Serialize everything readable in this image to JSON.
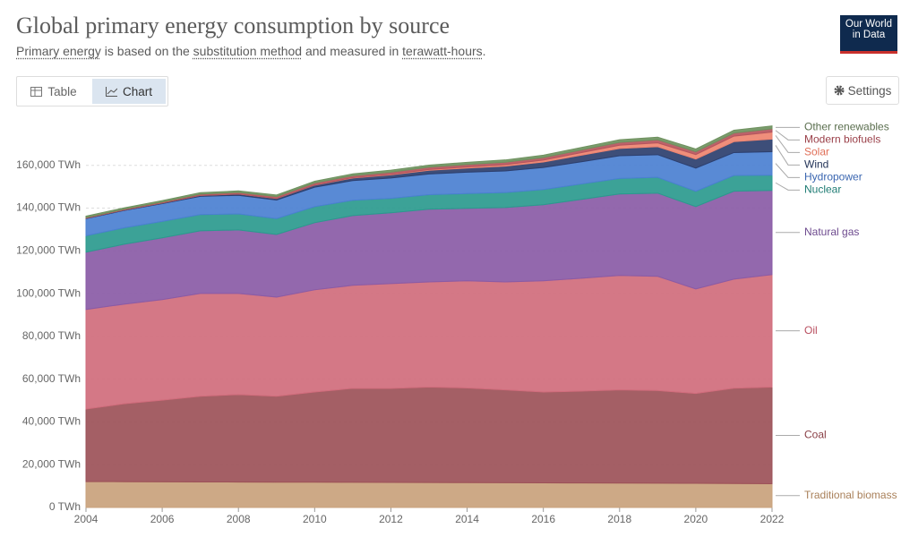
{
  "header": {
    "title": "Global primary energy consumption by source",
    "subtitle": [
      "Primary energy",
      " is based on the ",
      "substitution method",
      " and measured in ",
      "terawatt-hours",
      "."
    ],
    "logo": [
      "Our World",
      "in Data"
    ],
    "tabs": [
      "Table",
      "Chart"
    ],
    "settings": "Settings"
  },
  "chart_data": {
    "type": "stacked-area",
    "x": [
      2004,
      2005,
      2006,
      2007,
      2008,
      2009,
      2010,
      2011,
      2012,
      2013,
      2014,
      2015,
      2016,
      2017,
      2018,
      2019,
      2020,
      2021,
      2022
    ],
    "xlim": [
      2004,
      2022
    ],
    "xticks": [
      2004,
      2006,
      2008,
      2010,
      2012,
      2014,
      2016,
      2018,
      2020,
      2022
    ],
    "ylim": [
      0,
      180000
    ],
    "yticks": [
      {
        "value": 0,
        "label": "0 TWh"
      },
      {
        "value": 20000,
        "label": "20,000 TWh"
      },
      {
        "value": 40000,
        "label": "40,000 TWh"
      },
      {
        "value": 60000,
        "label": "60,000 TWh"
      },
      {
        "value": 80000,
        "label": "80,000 TWh"
      },
      {
        "value": 100000,
        "label": "100,000 TWh"
      },
      {
        "value": 120000,
        "label": "120,000 TWh"
      },
      {
        "value": 140000,
        "label": "140,000 TWh"
      },
      {
        "value": 160000,
        "label": "160,000 TWh"
      }
    ],
    "grid": true,
    "series": [
      {
        "name": "Traditional biomass",
        "color": "#c9a27c",
        "label_color": "#a9805a",
        "values": [
          12100,
          12050,
          12000,
          11950,
          11900,
          11850,
          11800,
          11750,
          11700,
          11650,
          11600,
          11550,
          11500,
          11450,
          11400,
          11350,
          11300,
          11200,
          11100
        ]
      },
      {
        "name": "Coal",
        "color": "#9c5158",
        "label_color": "#8a3f46",
        "values": [
          33900,
          36450,
          38200,
          40050,
          40900,
          40150,
          42200,
          43950,
          44000,
          44650,
          44300,
          43450,
          42500,
          42950,
          43600,
          43350,
          42000,
          44600,
          45200
        ]
      },
      {
        "name": "Oil",
        "color": "#d06d7c",
        "label_color": "#b94f60",
        "values": [
          46600,
          46600,
          47000,
          48100,
          47300,
          46400,
          47800,
          48200,
          49000,
          49200,
          50100,
          50500,
          52000,
          52800,
          53500,
          53400,
          48900,
          51000,
          52600
        ]
      },
      {
        "name": "Natural gas",
        "color": "#8a5ba6",
        "label_color": "#6d4a8e",
        "values": [
          26800,
          28000,
          28900,
          29300,
          29700,
          29300,
          31400,
          32600,
          33100,
          34000,
          33900,
          34800,
          35600,
          36900,
          38100,
          38900,
          38500,
          41100,
          39400
        ]
      },
      {
        "name": "Nuclear",
        "color": "#2b9a8e",
        "label_color": "#1f7c74",
        "values": [
          7700,
          7700,
          7700,
          7600,
          7500,
          7400,
          7500,
          7200,
          6800,
          6800,
          6900,
          7000,
          7100,
          7200,
          7300,
          7400,
          7200,
          7400,
          7100
        ]
      },
      {
        "name": "Hydropower",
        "color": "#4b80d1",
        "label_color": "#3a66b0",
        "values": [
          8000,
          8100,
          8300,
          8500,
          8700,
          8700,
          9100,
          9200,
          9500,
          9700,
          10000,
          10100,
          10300,
          10400,
          10600,
          10600,
          10800,
          10700,
          11000
        ]
      },
      {
        "name": "Wind",
        "color": "#2d3f6e",
        "label_color": "#243458",
        "values": [
          230,
          280,
          350,
          460,
          590,
          750,
          970,
          1210,
          1470,
          1720,
          1940,
          2250,
          2590,
          3080,
          3400,
          3740,
          4250,
          5080,
          5900
        ]
      },
      {
        "name": "Solar",
        "color": "#ee8470",
        "label_color": "#e06f58",
        "values": [
          5,
          8,
          13,
          20,
          35,
          60,
          90,
          170,
          270,
          370,
          520,
          680,
          880,
          1200,
          1530,
          1790,
          2100,
          2600,
          3300
        ]
      },
      {
        "name": "Modern biofuels",
        "color": "#b5555d",
        "label_color": "#9a3f48",
        "values": [
          300,
          350,
          430,
          560,
          720,
          790,
          920,
          930,
          1000,
          1080,
          1170,
          1170,
          1200,
          1270,
          1370,
          1440,
          1380,
          1450,
          1500
        ]
      },
      {
        "name": "Other renewables",
        "color": "#6f9260",
        "label_color": "#5a6e4e",
        "values": [
          600,
          620,
          650,
          680,
          710,
          750,
          800,
          850,
          900,
          950,
          1000,
          1050,
          1100,
          1150,
          1180,
          1220,
          1250,
          1300,
          1350
        ]
      }
    ]
  }
}
